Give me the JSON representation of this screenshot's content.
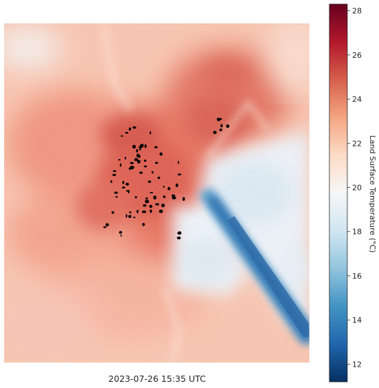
{
  "chart_data": {
    "type": "heatmap",
    "title": "",
    "caption": "2023-07-26 15:35 UTC",
    "colorbar": {
      "label": "Land Surface Temperature (°C)",
      "min": 11.2,
      "max": 28.3,
      "ticks": [
        12,
        14,
        16,
        18,
        20,
        22,
        24,
        26,
        28
      ],
      "tick_labels": [
        "12",
        "14",
        "16",
        "18",
        "20",
        "22",
        "24",
        "26",
        "28"
      ],
      "colormap": "RdBu_r",
      "orientation": "vertical",
      "placement": "right"
    },
    "field": {
      "approx_range": [
        11.5,
        27.5
      ],
      "description_units": "°C",
      "masked_pixels_color": "#000000"
    }
  }
}
